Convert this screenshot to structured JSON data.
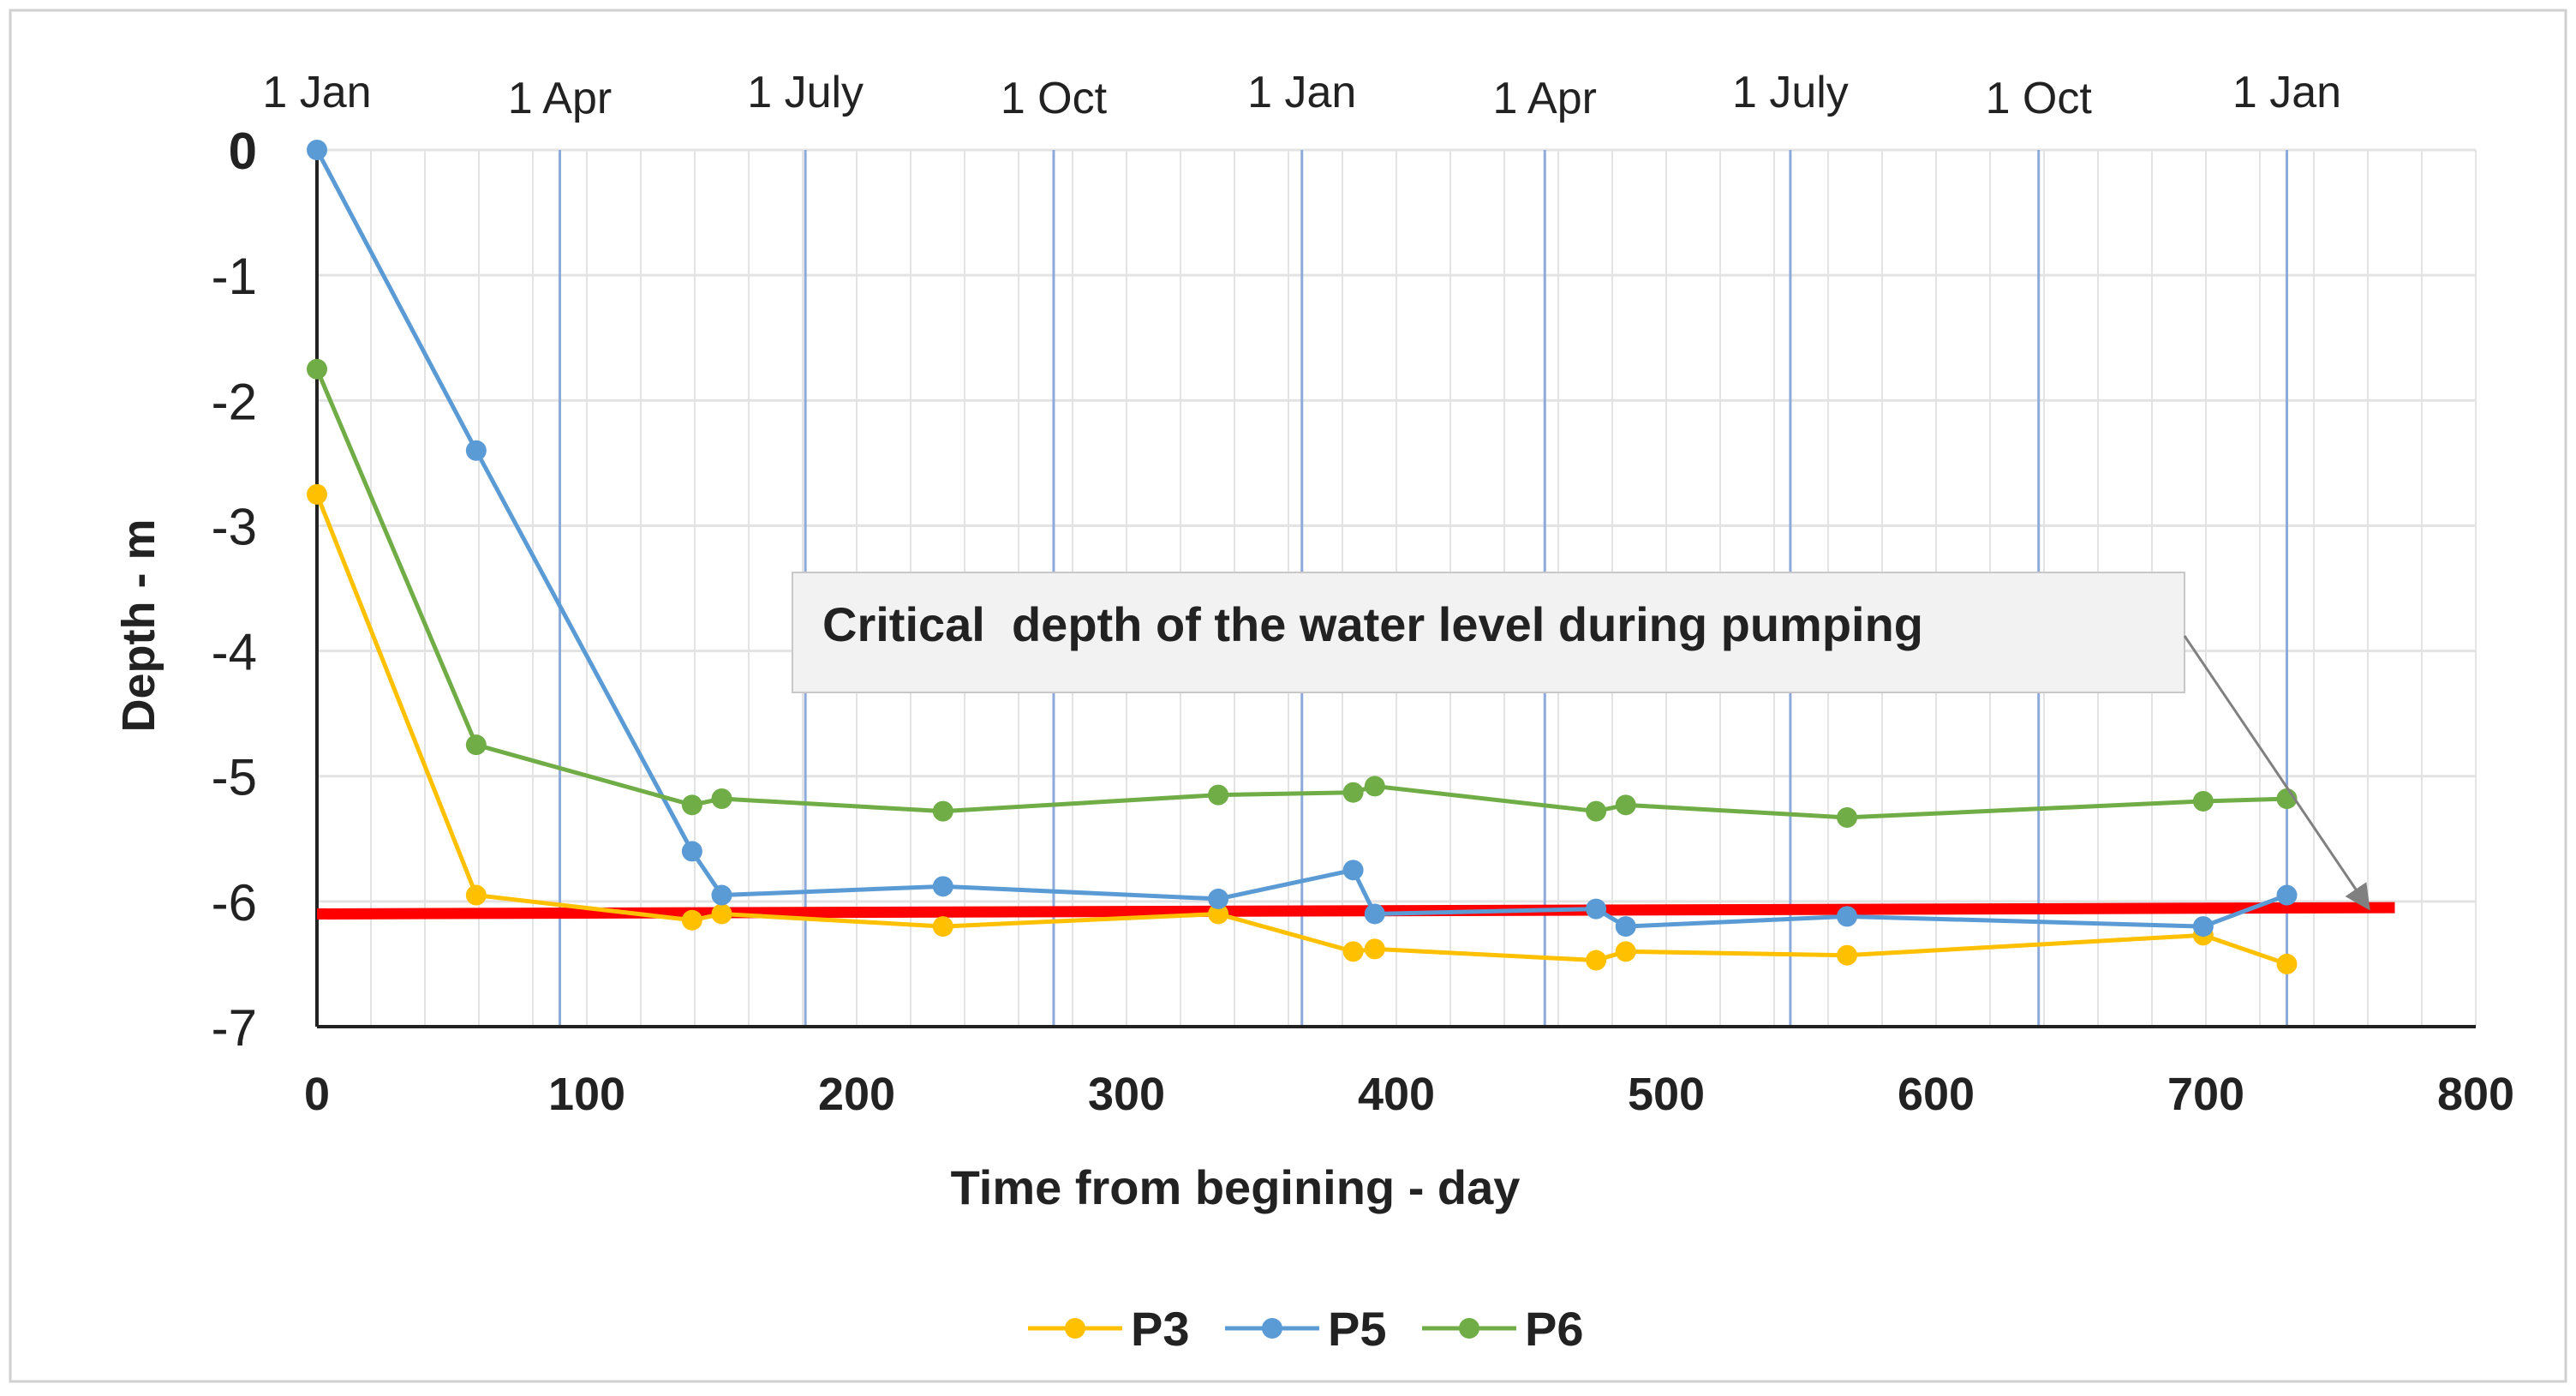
{
  "chart_data": {
    "type": "line",
    "xlabel": "Time from begining - day",
    "ylabel": "Depth - m",
    "xlim": [
      0,
      800
    ],
    "ylim": [
      -7,
      0
    ],
    "x_ticks": [
      0,
      100,
      200,
      300,
      400,
      500,
      600,
      700,
      800
    ],
    "y_ticks": [
      0,
      -1,
      -2,
      -3,
      -4,
      -5,
      -6,
      -7
    ],
    "grid": true,
    "legend_position": "bottom-center",
    "month_markers": [
      {
        "label": "1 Jan",
        "day": 0
      },
      {
        "label": "1 Apr",
        "day": 90
      },
      {
        "label": "1 July",
        "day": 181
      },
      {
        "label": "1 Oct",
        "day": 273
      },
      {
        "label": "1 Jan",
        "day": 365
      },
      {
        "label": "1 Apr",
        "day": 455
      },
      {
        "label": "1 July",
        "day": 546
      },
      {
        "label": "1 Oct",
        "day": 638
      },
      {
        "label": "1 Jan",
        "day": 730
      }
    ],
    "critical_depth": {
      "label": "Critical  depth of the water level during pumping",
      "x_range": [
        0,
        770
      ],
      "y_range": [
        -6.1,
        -6.05
      ],
      "color": "#ff0000"
    },
    "series": [
      {
        "name": "P3",
        "color": "#ffc000",
        "x": [
          0,
          59,
          139,
          150,
          232,
          334,
          384,
          392,
          474,
          485,
          567,
          699,
          730
        ],
        "y": [
          -2.75,
          -5.95,
          -6.15,
          -6.1,
          -6.2,
          -6.1,
          -6.4,
          -6.38,
          -6.47,
          -6.4,
          -6.43,
          -6.27,
          -6.5
        ]
      },
      {
        "name": "P5",
        "color": "#5b9bd5",
        "x": [
          0,
          59,
          139,
          150,
          232,
          334,
          384,
          392,
          474,
          485,
          567,
          699,
          730
        ],
        "y": [
          0,
          -2.4,
          -5.6,
          -5.95,
          -5.88,
          -5.98,
          -5.75,
          -6.1,
          -6.06,
          -6.2,
          -6.12,
          -6.2,
          -5.95
        ]
      },
      {
        "name": "P6",
        "color": "#70ad47",
        "x": [
          0,
          59,
          139,
          150,
          232,
          334,
          384,
          392,
          474,
          485,
          567,
          699,
          730
        ],
        "y": [
          -1.75,
          -4.75,
          -5.23,
          -5.18,
          -5.28,
          -5.15,
          -5.13,
          -5.08,
          -5.28,
          -5.23,
          -5.33,
          -5.2,
          -5.18
        ]
      }
    ]
  }
}
